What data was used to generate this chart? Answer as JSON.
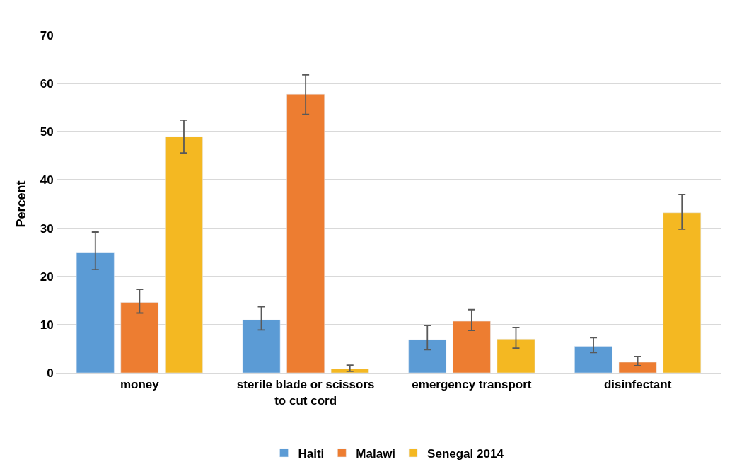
{
  "chart_data": {
    "type": "bar",
    "ylabel": "Percent",
    "categories": [
      "money",
      "sterile blade or scissors\nto cut cord",
      "emergency transport",
      "disinfectant"
    ],
    "series": [
      {
        "name": "Haiti",
        "color": "#5b9bd5",
        "values": [
          25.0,
          11.0,
          6.9,
          5.5
        ],
        "errors": [
          [
            21.4,
            29.2
          ],
          [
            8.9,
            13.7
          ],
          [
            4.8,
            9.8
          ],
          [
            4.2,
            7.3
          ]
        ]
      },
      {
        "name": "Malawi",
        "color": "#ed7d31",
        "values": [
          14.6,
          57.8,
          10.7,
          2.2
        ],
        "errors": [
          [
            12.4,
            17.3
          ],
          [
            53.6,
            61.8
          ],
          [
            8.8,
            13.1
          ],
          [
            1.5,
            3.4
          ]
        ]
      },
      {
        "name": "Senegal 2014",
        "color": "#f4b822",
        "values": [
          49.0,
          0.8,
          7.0,
          33.2
        ],
        "errors": [
          [
            45.6,
            52.4
          ],
          [
            0.3,
            1.6
          ],
          [
            5.1,
            9.4
          ],
          [
            29.8,
            37.0
          ]
        ]
      }
    ],
    "ylim": [
      0,
      70
    ],
    "yticks": [
      0,
      10,
      20,
      30,
      40,
      50,
      60,
      70
    ],
    "grid": "y",
    "legend": "bottom"
  }
}
